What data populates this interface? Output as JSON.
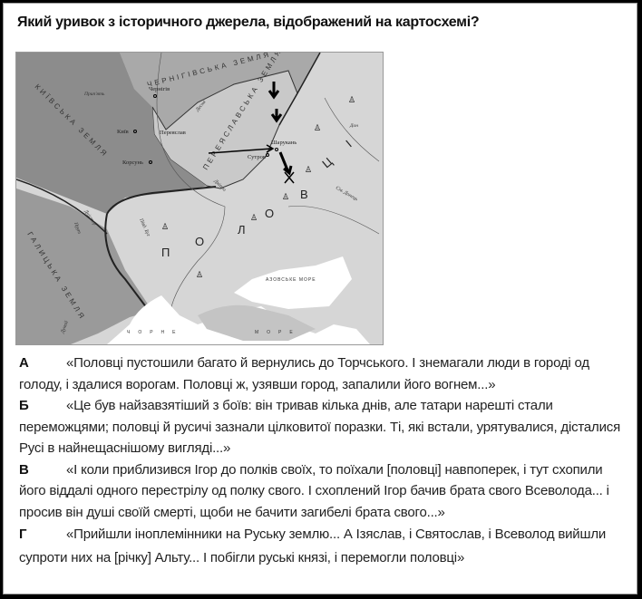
{
  "question": "Який уривок з історичного джерела, відображений на картосхемі?",
  "map": {
    "regions": [
      "ЧЕРНІГІВСЬКА ЗЕМЛЯ",
      "КИЇВСЬКА ЗЕМЛЯ",
      "ПЕРЕЯСЛАВСЬКА ЗЕМЛЯ",
      "ГАЛИЦЬКА ЗЕМЛЯ"
    ],
    "cities": [
      "Чернігів",
      "Київ",
      "Переяслав",
      "Корсунь",
      "Шарукань",
      "Сутров"
    ],
    "rivers": [
      "Прип'ять",
      "Десна",
      "Дон",
      "Сів. Донець",
      "Дніпро",
      "Дністер",
      "Прут",
      "Півд. Буг",
      "Дунай"
    ],
    "people": [
      "П",
      "О",
      "Л",
      "О",
      "В",
      "Ц",
      "І"
    ],
    "seas": {
      "azov": "АЗОВСЬКЕ МОРЕ",
      "black_left": "ЧОРНЕ",
      "black_right": "МОРЕ"
    },
    "colors": {
      "kyiv": "#8c8c8c",
      "chernihiv": "#a9a9a9",
      "pereyaslav": "#c9c9c9",
      "steppe": "#d6d6d6",
      "sea": "#ffffff"
    }
  },
  "options": [
    {
      "letter": "А",
      "text": "«Половці пустошили багато й вернулись до Торчського. І знемагали люди в городі од голоду, і здалися ворогам. Половці ж, узявши город, запалили його вогнем...»"
    },
    {
      "letter": "Б",
      "text": "«Це був найзавзятіший з боїв: він тривав кілька днів, але татари нарешті стали переможцями; половці й русичі зазнали цілковитої поразки. Ті, які встали, урятувалися, дісталися Русі в найнещаснішому вигляді...»"
    },
    {
      "letter": "В",
      "text": "«І коли приблизився Ігор до полків своїх, то поїхали [половці] навпоперек, і тут схопили його віддалі одного перестрілу од полку свого. І схоплений Ігор бачив брата свого Всеволода... і просив він душі своїй смерті, щоби не бачити загибелі брата свого...»"
    },
    {
      "letter": "Г",
      "text": "«Прийшли іноплемінники на Руську землю... А Ізяслав, і Святослав, і Всеволод вийшли супроти них на [річку] Альту... І побігли руські князі, і перемогли половці»"
    }
  ]
}
